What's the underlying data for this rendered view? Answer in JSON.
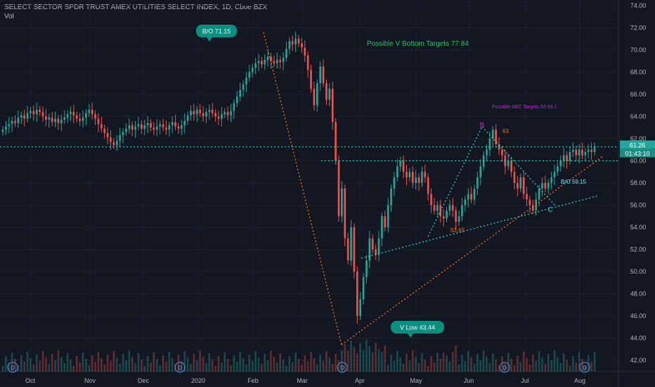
{
  "header": {
    "title": "SELECT SECTOR SPDR TRUST AMEX UTILITIES SELECT INDEX, 1D, Cboe BZX",
    "volume_label": "Vol"
  },
  "colors": {
    "background": "#131722",
    "up": "#26a69a",
    "down": "#ef5350",
    "grid": "#1e222d",
    "text": "#b2b5be",
    "annotation_green": "#22c55e",
    "annotation_teal": "#2dd4bf",
    "annotation_orange": "#f97316",
    "annotation_purple": "#c026d3"
  },
  "chart_data": {
    "type": "candlestick",
    "ylim": [
      41,
      74
    ],
    "y_ticks": [
      "74.00",
      "72.00",
      "70.00",
      "68.00",
      "66.00",
      "64.00",
      "62.00",
      "60.00",
      "58.00",
      "56.00",
      "54.00",
      "52.00",
      "50.00",
      "48.00",
      "46.00",
      "44.00",
      "42.00"
    ],
    "x_ticks": [
      "Oct",
      "Nov",
      "Dec",
      "2020",
      "Feb",
      "Mar",
      "Apr",
      "May",
      "Jun",
      "Jul",
      "Aug"
    ],
    "price_badge": {
      "value": "61.26",
      "countdown": "01:43:10"
    },
    "dividend_marker": "D",
    "closes": [
      62.8,
      63.1,
      63.3,
      63.6,
      63.4,
      63.9,
      64.1,
      63.8,
      64.3,
      64.5,
      64.2,
      64.6,
      64.4,
      64.0,
      63.7,
      63.9,
      63.5,
      63.8,
      63.4,
      63.7,
      63.9,
      64.2,
      64.4,
      64.1,
      63.8,
      63.6,
      63.9,
      64.3,
      64.6,
      64.2,
      63.8,
      63.3,
      62.9,
      62.5,
      62.1,
      61.7,
      61.4,
      61.8,
      62.3,
      62.6,
      62.9,
      63.2,
      62.8,
      63.1,
      63.3,
      62.9,
      63.2,
      63.4,
      63.0,
      62.8,
      63.1,
      63.3,
      63.0,
      62.8,
      63.2,
      63.5,
      63.1,
      62.9,
      63.2,
      63.6,
      64.1,
      64.5,
      64.2,
      64.6,
      64.3,
      64.0,
      64.4,
      64.6,
      64.3,
      64.0,
      63.8,
      64.2,
      64.4,
      64.1,
      64.5,
      65.2,
      65.8,
      66.4,
      66.9,
      67.5,
      68.0,
      68.4,
      68.8,
      69.0,
      68.7,
      69.1,
      69.4,
      69.0,
      68.8,
      69.1,
      68.9,
      69.3,
      70.1,
      70.8,
      70.5,
      71.0,
      70.6,
      70.2,
      69.5,
      68.2,
      66.5,
      65.0,
      67.0,
      68.5,
      67.0,
      65.5,
      66.5,
      63.5,
      60.0,
      55.0,
      57.5,
      53.0,
      51.0,
      54.0,
      50.0,
      46.0,
      47.5,
      49.5,
      51.0,
      53.0,
      52.0,
      51.5,
      53.0,
      55.0,
      54.0,
      56.0,
      57.5,
      58.5,
      59.5,
      60.0,
      59.0,
      58.5,
      59.0,
      58.0,
      58.5,
      58.0,
      59.0,
      58.5,
      57.0,
      56.0,
      55.5,
      56.0,
      55.0,
      54.8,
      55.5,
      56.0,
      55.5,
      54.5,
      55.0,
      56.0,
      56.5,
      57.0,
      56.5,
      57.5,
      58.5,
      59.5,
      60.5,
      61.0,
      62.0,
      62.8,
      61.5,
      61.0,
      60.5,
      59.5,
      60.0,
      59.0,
      58.0,
      57.5,
      58.5,
      57.0,
      56.5,
      56.0,
      55.5,
      56.5,
      57.5,
      58.0,
      57.5,
      58.0,
      58.5,
      59.0,
      59.5,
      60.0,
      60.5,
      60.0,
      60.8,
      61.0,
      60.5,
      61.0,
      60.5,
      60.8,
      61.0,
      60.8,
      61.3
    ],
    "reference_lines": [
      {
        "name": "last-price",
        "value": 61.26
      },
      {
        "name": "breakdown-level",
        "value": 60.0
      }
    ],
    "annotations": {
      "bo_top": "B/O 71.15",
      "v_bottom": "Possible V Bottom Targets 77  84",
      "abc": "Possible ABC Targets 63  69.1",
      "b_label": "B",
      "target_63": "63",
      "bo_right": "B/O 59.15",
      "c_label": "C",
      "level_5365": "53.65",
      "v_low": "V Low  43.44"
    }
  }
}
